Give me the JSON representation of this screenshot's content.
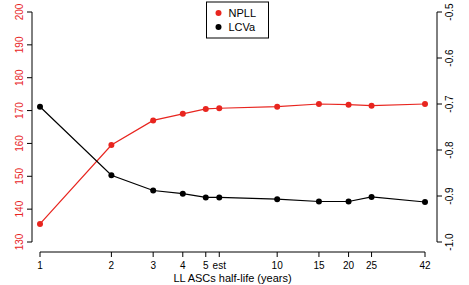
{
  "chart_data": {
    "type": "line",
    "x_label": "LL ASCs half-life (years)",
    "x": [
      1,
      2,
      3,
      4,
      5,
      5.7,
      10,
      15,
      20,
      25,
      42
    ],
    "xlim": [
      1,
      42
    ],
    "xticks": [
      1,
      2,
      3,
      4,
      5,
      {
        "value": 5.7,
        "label": "est"
      },
      10,
      15,
      20,
      25,
      42
    ],
    "log": "x",
    "ylim": [
      130,
      200
    ],
    "yticks": [
      130,
      140,
      150,
      160,
      170,
      180,
      190,
      200
    ],
    "y2lim": [
      -1,
      -0.5
    ],
    "y2ticks": [
      {
        "value": -1,
        "label": "-1.0"
      },
      -0.9,
      -0.8,
      -0.7,
      -0.6,
      -0.5
    ],
    "legend": "top",
    "series": [
      {
        "name": "NPLL",
        "color": "#e8251f",
        "marker": "circle",
        "values": [
          135.5,
          159.5,
          167,
          169,
          170.5,
          170.7,
          171.2,
          172,
          171.8,
          171.5,
          172
        ]
      },
      {
        "name": "LCVa",
        "color": "#000000",
        "marker": "circle",
        "axis": "y2",
        "values": [
          -0.706,
          -0.855,
          -0.888,
          -0.895,
          -0.903,
          -0.903,
          -0.907,
          -0.912,
          -0.912,
          -0.902,
          -0.913
        ]
      }
    ]
  }
}
